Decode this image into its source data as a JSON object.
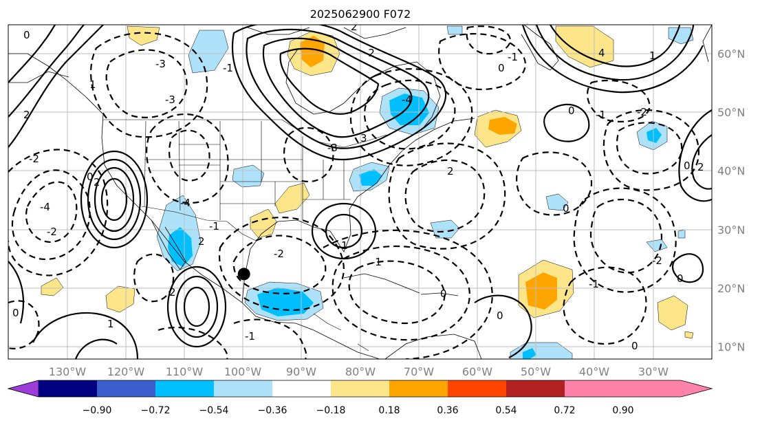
{
  "title": "2025062900 F072",
  "map": {
    "lon_labels": [
      "130°W",
      "120°W",
      "110°W",
      "100°W",
      "90°W",
      "80°W",
      "70°W",
      "60°W",
      "50°W",
      "40°W",
      "30°W"
    ],
    "lat_labels": [
      "60°N",
      "50°N",
      "40°N",
      "30°N",
      "20°N",
      "10°N"
    ],
    "extent": {
      "lon": [
        -138,
        -18
      ],
      "lat": [
        8,
        65
      ]
    },
    "gridlines": true,
    "marker": {
      "name": "storm-center-dot",
      "lon": -97.8,
      "lat": 22.5
    },
    "contour_labels": [
      "0",
      "0",
      "1",
      "2",
      "-2",
      "-4",
      "-3",
      "-1",
      "-2",
      "2",
      "-1",
      "0",
      "1",
      "0",
      "-1",
      "0",
      "-2",
      "-4",
      "2",
      "3",
      "0",
      "0",
      "-1",
      "-2",
      "2",
      "-1",
      "-3",
      "-3",
      "4",
      "-2",
      "0",
      "2",
      "-1",
      "-1",
      "-2",
      "1",
      "2",
      "0",
      "1",
      "0",
      "0",
      "-4",
      "2"
    ],
    "colors": {
      "land_lines": "#000000",
      "grid": "#bdbdbd"
    }
  },
  "colorbar": {
    "ticks": [
      "−0.90",
      "−0.72",
      "−0.54",
      "−0.36",
      "−0.18",
      "0.18",
      "0.36",
      "0.54",
      "0.72",
      "0.90"
    ],
    "colors": [
      "#9c3dd9",
      "#000080",
      "#3a5fcd",
      "#00bfff",
      "#aee2fa",
      "#ffffff",
      "#fde68a",
      "#ffa500",
      "#ff4500",
      "#b22222",
      "#ff82ab"
    ],
    "extend": "both"
  }
}
